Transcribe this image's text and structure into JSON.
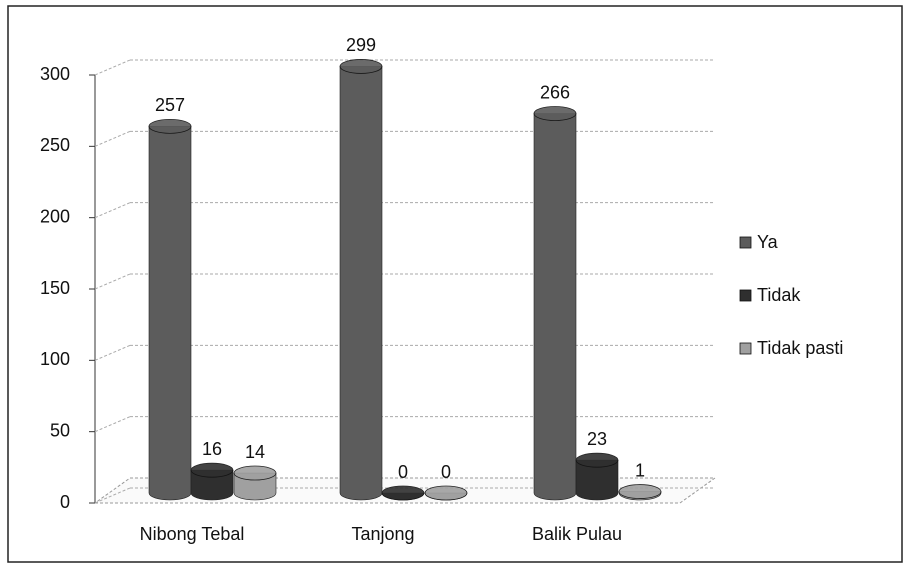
{
  "chart_data": {
    "type": "bar",
    "categories": [
      "Nibong Tebal",
      "Tanjong",
      "Balik Pulau"
    ],
    "series": [
      {
        "name": "Ya",
        "color": "#5c5c5c",
        "values": [
          257,
          299,
          266
        ]
      },
      {
        "name": "Tidak",
        "color": "#2f2f2f",
        "values": [
          16,
          0,
          23
        ]
      },
      {
        "name": "Tidak pasti",
        "color": "#a0a0a0",
        "values": [
          14,
          0,
          1
        ]
      }
    ],
    "ylim": [
      0,
      300
    ],
    "yticks": [
      0,
      50,
      100,
      150,
      200,
      250,
      300
    ],
    "grid": true,
    "legend": "right"
  }
}
